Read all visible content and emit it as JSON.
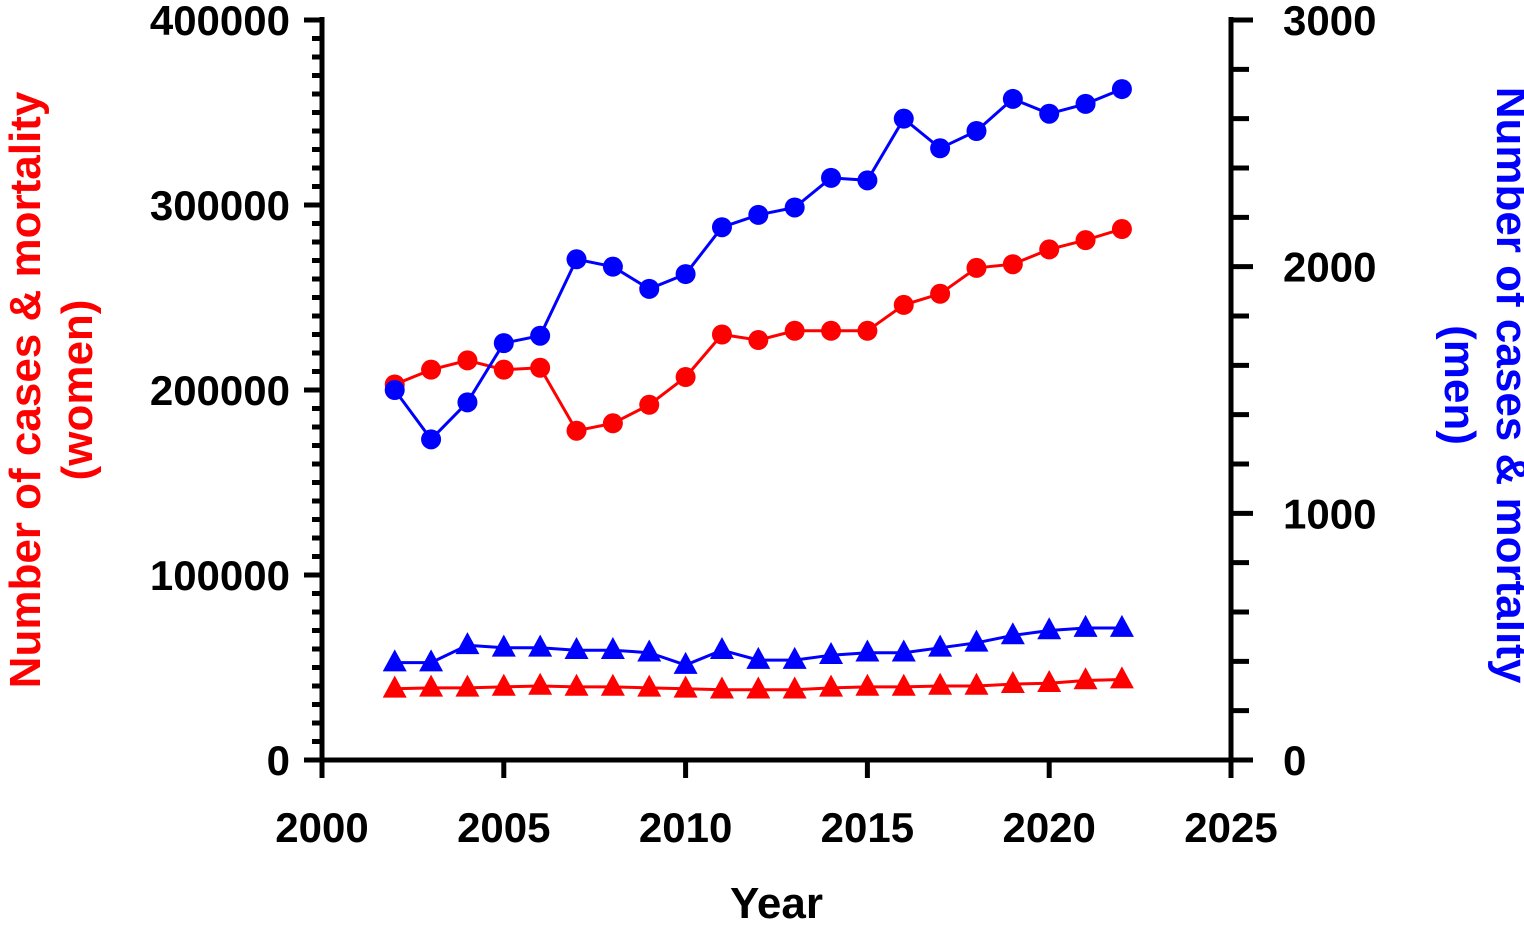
{
  "chart_data": {
    "type": "line",
    "xlabel": "Year",
    "ylabel_left": [
      "Number of cases & mortality",
      "(women)"
    ],
    "ylabel_right": [
      "Number of cases & mortality",
      "(men)"
    ],
    "xlim": [
      2000,
      2025
    ],
    "ylim_left": [
      0,
      400000
    ],
    "ylim_right": [
      0,
      3000
    ],
    "x_ticks": [
      "2000",
      "2005",
      "2010",
      "2015",
      "2020",
      "2025"
    ],
    "y_left_ticks": [
      "0",
      "100000",
      "200000",
      "300000",
      "400000"
    ],
    "y_right_ticks": [
      "0",
      "1000",
      "2000",
      "3000"
    ],
    "grid": false,
    "legend": "none",
    "colors": {
      "women": "#ff0000",
      "men": "#0000ff",
      "axis": "#000000"
    },
    "x": [
      2002,
      2003,
      2004,
      2005,
      2006,
      2007,
      2008,
      2009,
      2010,
      2011,
      2012,
      2013,
      2014,
      2015,
      2016,
      2017,
      2018,
      2019,
      2020,
      2021,
      2022
    ],
    "series": [
      {
        "axis": "left",
        "color": "#ff0000",
        "marker": "circle",
        "values": [
          203000,
          211000,
          216000,
          211000,
          212000,
          178000,
          182000,
          192000,
          207000,
          230000,
          227000,
          232000,
          232000,
          232000,
          246000,
          252000,
          266000,
          268000,
          276000,
          281000,
          287000
        ]
      },
      {
        "axis": "right",
        "color": "#0000ff",
        "marker": "circle",
        "values": [
          1500,
          1300,
          1450,
          1690,
          1720,
          2030,
          2000,
          1910,
          1970,
          2160,
          2210,
          2240,
          2360,
          2350,
          2600,
          2480,
          2550,
          2680,
          2620,
          2660,
          2720
        ]
      },
      {
        "axis": "left",
        "color": "#ff0000",
        "marker": "triangle",
        "values": [
          38500,
          39000,
          39000,
          39500,
          40000,
          39500,
          39500,
          39000,
          38500,
          38000,
          38000,
          38000,
          39000,
          39500,
          39500,
          40000,
          40000,
          41000,
          41500,
          43000,
          43500
        ]
      },
      {
        "axis": "right",
        "color": "#0000ff",
        "marker": "triangle",
        "values": [
          395,
          395,
          465,
          455,
          455,
          445,
          445,
          435,
          385,
          445,
          405,
          405,
          425,
          435,
          435,
          455,
          475,
          505,
          525,
          535,
          535
        ]
      }
    ]
  }
}
